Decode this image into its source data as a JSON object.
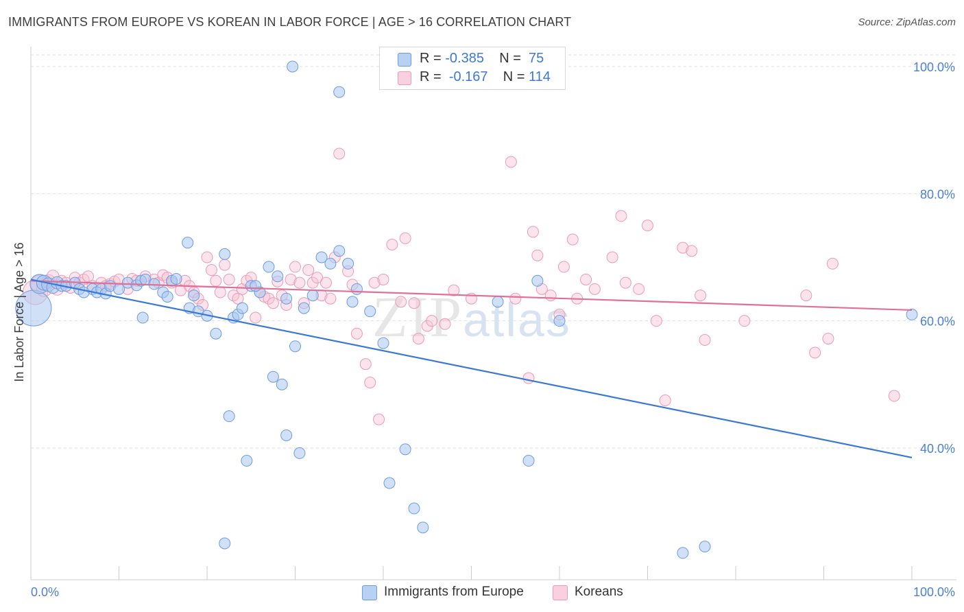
{
  "title": "IMMIGRANTS FROM EUROPE VS KOREAN IN LABOR FORCE | AGE > 16 CORRELATION CHART",
  "source": "Source: ZipAtlas.com",
  "watermark": "ZIPatlas",
  "legend": {
    "rows": [
      {
        "r_label": "R = ",
        "r_value": "-0.385",
        "n_label": "N = ",
        "n_value": "75"
      },
      {
        "r_label": "R = ",
        "r_value": "-0.167",
        "n_label": "N = ",
        "n_value": "114"
      }
    ]
  },
  "bottom_legend": [
    "Immigrants from Europe",
    "Koreans"
  ],
  "colors": {
    "blue_fill": "#a9c8f0",
    "blue_stroke": "#6b9be0",
    "blue_line": "#3a78d6",
    "pink_fill": "#f6c3d3",
    "pink_stroke": "#eb9ab5",
    "pink_line": "#e07098",
    "tick_text": "#4a7fd6",
    "grid": "#dedede"
  },
  "chart_data": {
    "type": "scatter",
    "title": "IMMIGRANTS FROM EUROPE VS KOREAN IN LABOR FORCE | AGE > 16 CORRELATION CHART",
    "xlabel": "",
    "ylabel": "In Labor Force | Age > 16",
    "xlim": [
      0,
      100
    ],
    "ylim": [
      21,
      102
    ],
    "x_tick_labels": [
      "0.0%",
      "100.0%"
    ],
    "y_ticks": [
      40,
      60,
      80,
      100
    ],
    "y_tick_labels": [
      "40.0%",
      "60.0%",
      "80.0%",
      "100.0%"
    ],
    "grid": true,
    "legend_position": "top-center",
    "series": [
      {
        "name": "Immigrants from Europe",
        "r": -0.385,
        "n": 75,
        "trend": {
          "x": [
            0,
            100
          ],
          "y": [
            66.5,
            38.5
          ]
        },
        "points": [
          [
            0.3,
            62,
            26
          ],
          [
            1,
            65.8,
            14
          ],
          [
            1.5,
            66,
            11
          ],
          [
            2,
            65.7,
            10
          ],
          [
            2.5,
            65.3,
            9
          ],
          [
            3,
            66,
            9
          ],
          [
            3.5,
            65.5,
            8
          ],
          [
            4,
            65.5,
            8
          ],
          [
            5,
            66,
            8
          ],
          [
            5.5,
            65,
            8
          ],
          [
            6,
            64.5,
            8
          ],
          [
            7,
            65,
            8
          ],
          [
            7.5,
            64.5,
            8
          ],
          [
            8,
            65,
            8
          ],
          [
            8.5,
            64.3,
            8
          ],
          [
            9,
            65.5,
            8
          ],
          [
            10,
            65,
            8
          ],
          [
            11,
            66,
            8
          ],
          [
            12,
            65.6,
            8
          ],
          [
            12.5,
            66.3,
            8
          ],
          [
            13,
            66.5,
            8
          ],
          [
            14,
            65.8,
            8
          ],
          [
            15,
            64.5,
            8
          ],
          [
            12.7,
            60.5,
            8
          ],
          [
            15.5,
            63.8,
            8
          ],
          [
            16,
            66.3,
            8
          ],
          [
            16.5,
            66.6,
            8
          ],
          [
            18,
            62,
            8
          ],
          [
            18.5,
            64,
            8
          ],
          [
            19,
            61.5,
            8
          ],
          [
            20,
            60.8,
            8
          ],
          [
            17.8,
            72.3,
            8
          ],
          [
            22,
            70.5,
            8
          ],
          [
            21,
            58,
            8
          ],
          [
            23,
            60.5,
            8
          ],
          [
            23.5,
            61,
            8
          ],
          [
            24,
            62,
            8
          ],
          [
            25,
            65.5,
            8
          ],
          [
            26,
            64.5,
            8
          ],
          [
            28,
            67,
            8
          ],
          [
            29,
            63.5,
            8
          ],
          [
            27,
            68.5,
            8
          ],
          [
            25.5,
            65.5,
            8
          ],
          [
            27.5,
            51.2,
            8
          ],
          [
            30,
            56,
            8
          ],
          [
            28.5,
            50,
            8
          ],
          [
            22.5,
            45,
            8
          ],
          [
            24.5,
            38,
            8
          ],
          [
            29,
            42,
            8
          ],
          [
            31,
            62,
            8
          ],
          [
            32,
            64,
            8
          ],
          [
            33,
            70,
            8
          ],
          [
            34,
            69,
            8
          ],
          [
            35,
            71,
            8
          ],
          [
            36,
            69,
            8
          ],
          [
            36.5,
            63,
            8
          ],
          [
            37,
            65,
            8
          ],
          [
            38.5,
            61.5,
            8
          ],
          [
            40,
            56.5,
            8
          ],
          [
            29.7,
            100,
            8
          ],
          [
            35,
            96,
            8
          ],
          [
            30.5,
            39.2,
            8
          ],
          [
            40.7,
            34.5,
            8
          ],
          [
            42.5,
            39.8,
            8
          ],
          [
            43.5,
            30.5,
            8
          ],
          [
            44.5,
            27.5,
            8
          ],
          [
            53,
            63,
            8
          ],
          [
            57.5,
            66.3,
            8
          ],
          [
            60,
            60,
            8
          ],
          [
            56.5,
            38,
            8
          ],
          [
            22,
            25,
            8
          ],
          [
            74,
            23.5,
            8
          ],
          [
            76.5,
            24.5,
            8
          ],
          [
            100,
            61,
            8
          ]
        ]
      },
      {
        "name": "Koreans",
        "r": -0.167,
        "n": 114,
        "trend": {
          "x": [
            0,
            100
          ],
          "y": [
            66.3,
            61.7
          ]
        },
        "points": [
          [
            0.5,
            64.5,
            18
          ],
          [
            1,
            65.8,
            13
          ],
          [
            1.5,
            65,
            11
          ],
          [
            2,
            66.2,
            10
          ],
          [
            2.5,
            67,
            9
          ],
          [
            3,
            65,
            9
          ],
          [
            3.5,
            66.3,
            8
          ],
          [
            4,
            66,
            8
          ],
          [
            4.5,
            65.2,
            8
          ],
          [
            5,
            66.8,
            8
          ],
          [
            5.5,
            66,
            8
          ],
          [
            6,
            66.5,
            8
          ],
          [
            6.5,
            67,
            8
          ],
          [
            7,
            65.5,
            8
          ],
          [
            8,
            66,
            8
          ],
          [
            8.5,
            65.5,
            8
          ],
          [
            9,
            65.8,
            8
          ],
          [
            9.5,
            66.2,
            8
          ],
          [
            10,
            66.5,
            8
          ],
          [
            11,
            65,
            8
          ],
          [
            11.5,
            66.6,
            8
          ],
          [
            12,
            66.3,
            8
          ],
          [
            13,
            67,
            8
          ],
          [
            14,
            66.5,
            8
          ],
          [
            14.5,
            66,
            8
          ],
          [
            15,
            67.2,
            8
          ],
          [
            15.5,
            66.8,
            8
          ],
          [
            16,
            66,
            8
          ],
          [
            17,
            64.8,
            8
          ],
          [
            17.5,
            66.3,
            8
          ],
          [
            18,
            65.5,
            8
          ],
          [
            18.5,
            64.5,
            8
          ],
          [
            19,
            63.5,
            8
          ],
          [
            19.5,
            62.5,
            8
          ],
          [
            20,
            70,
            8
          ],
          [
            20.5,
            68,
            8
          ],
          [
            21,
            66.3,
            8
          ],
          [
            21.5,
            64.5,
            8
          ],
          [
            22,
            68.8,
            8
          ],
          [
            22.5,
            66.5,
            8
          ],
          [
            23,
            64,
            8
          ],
          [
            23.5,
            63.5,
            8
          ],
          [
            24,
            65,
            8
          ],
          [
            24.5,
            66.3,
            8
          ],
          [
            25,
            66.8,
            8
          ],
          [
            25.5,
            60.5,
            8
          ],
          [
            26,
            64.5,
            8
          ],
          [
            26.5,
            63.8,
            8
          ],
          [
            27,
            63.5,
            8
          ],
          [
            27.5,
            62.8,
            8
          ],
          [
            28,
            66.2,
            8
          ],
          [
            28.5,
            64,
            8
          ],
          [
            29,
            62.5,
            8
          ],
          [
            29.5,
            66.5,
            8
          ],
          [
            30,
            68.5,
            8
          ],
          [
            30.5,
            66,
            8
          ],
          [
            31,
            62.8,
            8
          ],
          [
            31.5,
            68,
            8
          ],
          [
            32,
            66,
            8
          ],
          [
            32.5,
            66.8,
            8
          ],
          [
            33,
            64,
            8
          ],
          [
            33.5,
            66,
            8
          ],
          [
            34,
            63.5,
            8
          ],
          [
            34.5,
            70,
            8
          ],
          [
            35,
            86.3,
            8
          ],
          [
            36,
            67.8,
            8
          ],
          [
            36.5,
            65.7,
            8
          ],
          [
            37,
            58,
            8
          ],
          [
            38,
            53.2,
            8
          ],
          [
            38.5,
            50.3,
            8
          ],
          [
            39,
            66,
            8
          ],
          [
            39.5,
            44.5,
            8
          ],
          [
            40,
            66.5,
            8
          ],
          [
            41,
            72,
            8
          ],
          [
            42,
            63,
            8
          ],
          [
            42.5,
            73,
            8
          ],
          [
            43.5,
            62.8,
            8
          ],
          [
            44,
            57.2,
            8
          ],
          [
            45,
            59.2,
            8
          ],
          [
            45.5,
            60,
            8
          ],
          [
            47,
            59.5,
            8
          ],
          [
            48,
            64.8,
            8
          ],
          [
            50,
            63.5,
            8
          ],
          [
            54.5,
            85,
            8
          ],
          [
            55,
            63.5,
            8
          ],
          [
            56.5,
            51,
            8
          ],
          [
            57,
            74,
            8
          ],
          [
            57.5,
            70.3,
            8
          ],
          [
            58,
            65,
            8
          ],
          [
            59,
            64,
            8
          ],
          [
            60,
            61,
            8
          ],
          [
            60.5,
            68.5,
            8
          ],
          [
            61.5,
            72.8,
            8
          ],
          [
            62,
            63.5,
            8
          ],
          [
            63,
            66.5,
            8
          ],
          [
            64,
            65,
            8
          ],
          [
            66,
            70,
            8
          ],
          [
            67,
            76.5,
            8
          ],
          [
            67.5,
            66,
            8
          ],
          [
            69,
            65,
            8
          ],
          [
            70,
            75,
            8
          ],
          [
            71,
            60,
            8
          ],
          [
            72,
            47.5,
            8
          ],
          [
            74,
            71.5,
            8
          ],
          [
            75,
            71,
            8
          ],
          [
            76,
            64,
            8
          ],
          [
            76.5,
            57,
            8
          ],
          [
            81,
            60,
            8
          ],
          [
            88,
            64,
            8
          ],
          [
            89,
            55,
            8
          ],
          [
            90.5,
            57.2,
            8
          ],
          [
            98,
            48.2,
            8
          ],
          [
            91,
            69,
            8
          ]
        ]
      }
    ]
  }
}
